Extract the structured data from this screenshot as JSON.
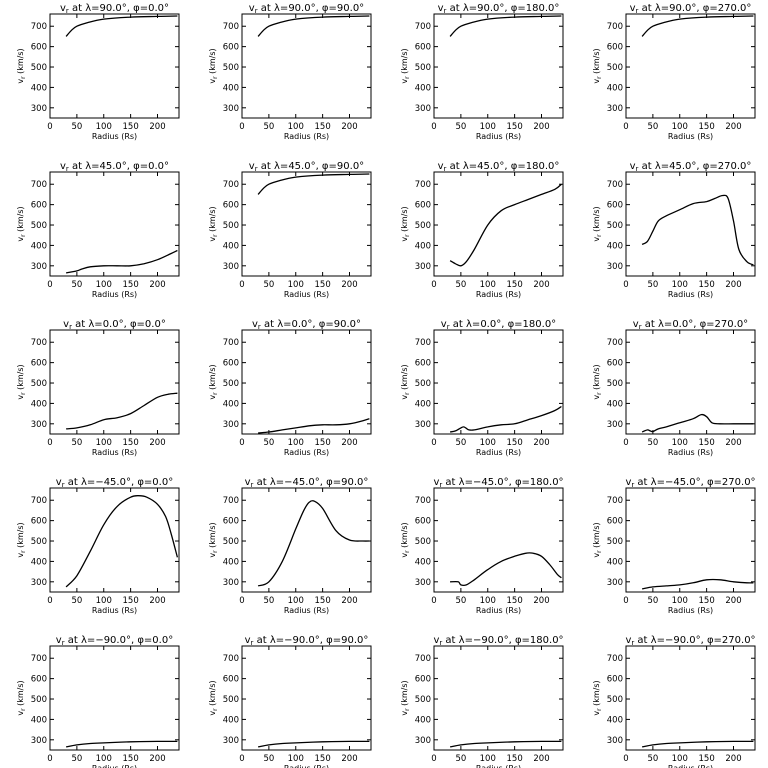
{
  "common": {
    "xlabel": "Radius (Rs)",
    "ylabel": "v_r (km/s)",
    "xlim": [
      0,
      240
    ],
    "ylim": [
      250,
      760
    ],
    "xticks": [
      0,
      50,
      100,
      150,
      200
    ],
    "yticks": [
      300,
      400,
      500,
      600,
      700
    ],
    "line_color": "#000000"
  },
  "chart_data": [
    {
      "type": "line",
      "title": "v_r at λ=90.0°, φ=0.0°",
      "lambda": "90.0",
      "phi": "0.0",
      "x": [
        30,
        40,
        50,
        70,
        100,
        150,
        200,
        237
      ],
      "y": [
        650,
        680,
        700,
        718,
        735,
        745,
        748,
        750
      ]
    },
    {
      "type": "line",
      "title": "v_r at λ=90.0°, φ=90.0°",
      "lambda": "90.0",
      "phi": "90.0",
      "x": [
        30,
        40,
        50,
        70,
        100,
        150,
        200,
        237
      ],
      "y": [
        650,
        680,
        700,
        718,
        735,
        745,
        748,
        750
      ]
    },
    {
      "type": "line",
      "title": "v_r at λ=90.0°, φ=180.0°",
      "lambda": "90.0",
      "phi": "180.0",
      "x": [
        30,
        40,
        50,
        70,
        100,
        150,
        200,
        237
      ],
      "y": [
        650,
        680,
        700,
        718,
        735,
        745,
        748,
        750
      ]
    },
    {
      "type": "line",
      "title": "v_r at λ=90.0°, φ=270.0°",
      "lambda": "90.0",
      "phi": "270.0",
      "x": [
        30,
        40,
        50,
        70,
        100,
        150,
        200,
        237
      ],
      "y": [
        650,
        680,
        700,
        718,
        735,
        745,
        748,
        750
      ]
    },
    {
      "type": "line",
      "title": "v_r at λ=45.0°, φ=0.0°",
      "lambda": "45.0",
      "phi": "0.0",
      "x": [
        30,
        50,
        60,
        75,
        100,
        125,
        150,
        175,
        200,
        225,
        237
      ],
      "y": [
        265,
        275,
        285,
        295,
        300,
        300,
        300,
        310,
        330,
        360,
        375
      ]
    },
    {
      "type": "line",
      "title": "v_r at λ=45.0°, φ=90.0°",
      "lambda": "45.0",
      "phi": "90.0",
      "x": [
        30,
        40,
        50,
        70,
        100,
        150,
        200,
        237
      ],
      "y": [
        650,
        680,
        700,
        718,
        735,
        745,
        748,
        750
      ]
    },
    {
      "type": "line",
      "title": "v_r at λ=45.0°, φ=180.0°",
      "lambda": "45.0",
      "phi": "180.0",
      "x": [
        30,
        40,
        50,
        60,
        75,
        100,
        125,
        150,
        175,
        200,
        225,
        237
      ],
      "y": [
        325,
        310,
        300,
        320,
        380,
        500,
        570,
        600,
        625,
        650,
        675,
        700
      ]
    },
    {
      "type": "line",
      "title": "v_r at λ=45.0°, φ=270.0°",
      "lambda": "45.0",
      "phi": "270.0",
      "x": [
        30,
        40,
        50,
        60,
        75,
        100,
        125,
        150,
        165,
        180,
        190,
        200,
        210,
        225,
        237
      ],
      "y": [
        405,
        420,
        470,
        520,
        545,
        575,
        605,
        615,
        630,
        645,
        630,
        520,
        380,
        320,
        305
      ]
    },
    {
      "type": "line",
      "title": "v_r at λ=0.0°, φ=0.0°",
      "lambda": "0.0",
      "phi": "0.0",
      "x": [
        30,
        50,
        75,
        100,
        125,
        150,
        175,
        200,
        220,
        237
      ],
      "y": [
        275,
        280,
        295,
        320,
        330,
        350,
        390,
        430,
        445,
        450
      ]
    },
    {
      "type": "line",
      "title": "v_r at λ=0.0°, φ=90.0°",
      "lambda": "0.0",
      "phi": "90.0",
      "x": [
        30,
        50,
        75,
        100,
        125,
        150,
        175,
        200,
        225,
        237
      ],
      "y": [
        255,
        260,
        270,
        280,
        290,
        295,
        295,
        300,
        315,
        325
      ]
    },
    {
      "type": "line",
      "title": "v_r at λ=0.0°, φ=180.0°",
      "lambda": "0.0",
      "phi": "180.0",
      "x": [
        30,
        40,
        50,
        55,
        60,
        65,
        75,
        100,
        125,
        150,
        175,
        200,
        225,
        237
      ],
      "y": [
        260,
        265,
        280,
        285,
        278,
        270,
        270,
        285,
        295,
        300,
        320,
        340,
        365,
        385
      ]
    },
    {
      "type": "line",
      "title": "v_r at λ=0.0°, φ=270.0°",
      "lambda": "0.0",
      "phi": "270.0",
      "x": [
        30,
        40,
        45,
        50,
        60,
        75,
        100,
        125,
        140,
        150,
        160,
        175,
        200,
        225,
        237
      ],
      "y": [
        260,
        270,
        265,
        262,
        275,
        285,
        305,
        325,
        345,
        335,
        305,
        300,
        300,
        300,
        300
      ]
    },
    {
      "type": "line",
      "title": "v_r at λ=−45.0°, φ=0.0°",
      "lambda": "−45.0",
      "phi": "0.0",
      "x": [
        30,
        50,
        75,
        100,
        125,
        150,
        165,
        180,
        200,
        215,
        225,
        237
      ],
      "y": [
        275,
        330,
        450,
        580,
        670,
        715,
        722,
        715,
        680,
        620,
        540,
        420
      ]
    },
    {
      "type": "line",
      "title": "v_r at λ=−45.0°, φ=90.0°",
      "lambda": "−45.0",
      "phi": "90.0",
      "x": [
        30,
        50,
        75,
        100,
        115,
        125,
        135,
        150,
        175,
        200,
        225,
        237
      ],
      "y": [
        280,
        300,
        400,
        560,
        650,
        690,
        695,
        660,
        550,
        505,
        500,
        500
      ]
    },
    {
      "type": "line",
      "title": "v_r at λ=−45.0°, φ=180.0°",
      "lambda": "−45.0",
      "phi": "180.0",
      "x": [
        30,
        45,
        50,
        60,
        75,
        100,
        125,
        150,
        170,
        185,
        200,
        215,
        230,
        237
      ],
      "y": [
        300,
        300,
        285,
        285,
        310,
        360,
        400,
        425,
        440,
        440,
        425,
        385,
        335,
        320
      ]
    },
    {
      "type": "line",
      "title": "v_r at λ=−45.0°, φ=270.0°",
      "lambda": "−45.0",
      "phi": "270.0",
      "x": [
        30,
        50,
        75,
        100,
        125,
        150,
        175,
        200,
        225,
        237
      ],
      "y": [
        265,
        275,
        280,
        285,
        295,
        310,
        310,
        300,
        295,
        295
      ]
    },
    {
      "type": "line",
      "title": "v_r at λ=−90.0°, φ=0.0°",
      "lambda": "−90.0",
      "phi": "0.0",
      "x": [
        30,
        50,
        75,
        100,
        150,
        200,
        237
      ],
      "y": [
        265,
        275,
        282,
        285,
        290,
        292,
        292
      ]
    },
    {
      "type": "line",
      "title": "v_r at λ=−90.0°, φ=90.0°",
      "lambda": "−90.0",
      "phi": "90.0",
      "x": [
        30,
        50,
        75,
        100,
        150,
        200,
        237
      ],
      "y": [
        265,
        275,
        282,
        285,
        290,
        292,
        292
      ]
    },
    {
      "type": "line",
      "title": "v_r at λ=−90.0°, φ=180.0°",
      "lambda": "−90.0",
      "phi": "180.0",
      "x": [
        30,
        50,
        75,
        100,
        150,
        200,
        237
      ],
      "y": [
        265,
        275,
        282,
        285,
        290,
        292,
        292
      ]
    },
    {
      "type": "line",
      "title": "v_r at λ=−90.0°, φ=270.0°",
      "lambda": "−90.0",
      "phi": "270.0",
      "x": [
        30,
        50,
        75,
        100,
        150,
        200,
        237
      ],
      "y": [
        265,
        275,
        282,
        285,
        290,
        292,
        292
      ]
    }
  ]
}
